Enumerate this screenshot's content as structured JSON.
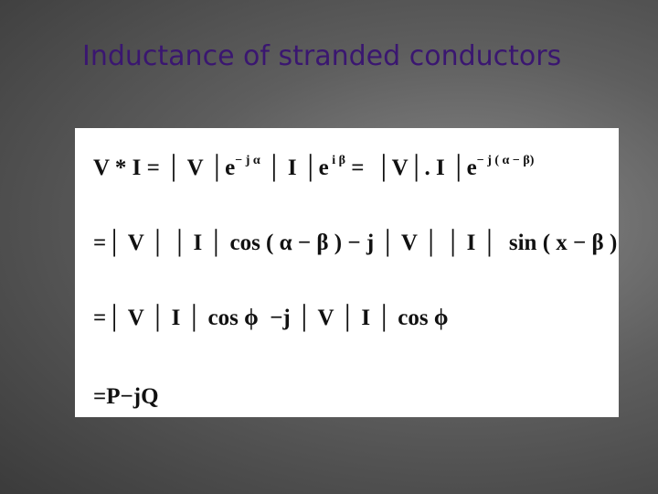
{
  "header": {
    "title": "Inductance of stranded conductors"
  },
  "equations": [
    [
      {
        "t": "V * I = │ V │e"
      },
      {
        "sup": "− j α"
      },
      {
        "t": " │ I │e"
      },
      {
        "sup": " i β"
      },
      {
        "t": " =  │V│. I │e"
      },
      {
        "sup": "− j ( α − β)"
      }
    ],
    [
      {
        "t": "=│ V │ │ I │ cos ( α − β ) − j │ V │ │ I │  sin ( x − β )"
      }
    ],
    [
      {
        "t": "=│ V │ I │ cos ϕ  −j │ V │ I │ cos ϕ"
      }
    ],
    [
      {
        "t": "=P−jQ"
      }
    ]
  ]
}
